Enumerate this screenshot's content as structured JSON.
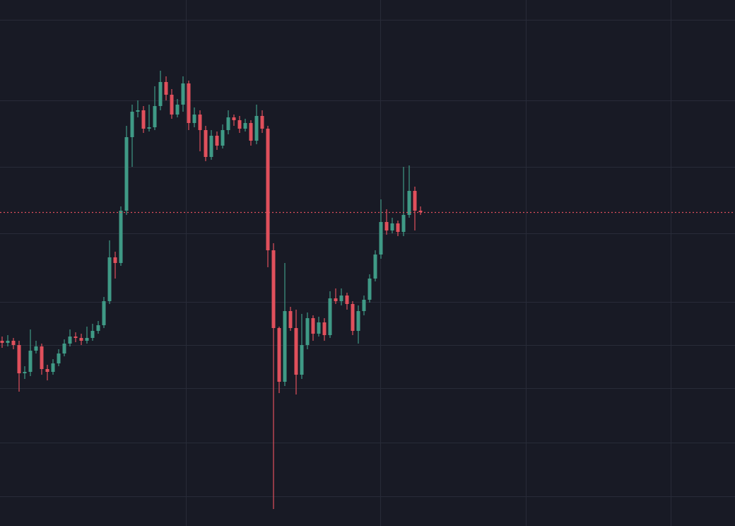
{
  "chart_data": {
    "type": "candlestick",
    "up_color": "#3f9a86",
    "down_color": "#e0505c",
    "price_line": true,
    "ylim": [
      0,
      744
    ],
    "open": [
      262,
      259,
      262,
      256,
      216,
      218,
      248,
      254,
      222,
      218,
      230,
      244,
      258,
      268,
      266,
      262,
      266,
      276,
      284,
      318,
      380,
      372,
      446,
      550,
      586,
      588,
      562,
      564,
      594,
      628,
      610,
      582,
      596,
      626,
      570,
      582,
      560,
      522,
      552,
      538,
      560,
      578,
      574,
      562,
      570,
      545,
      580,
      562,
      390,
      280,
      204,
      304,
      280,
      214,
      256,
      294,
      272,
      288,
      270,
      322,
      318,
      326,
      314,
      276,
      304,
      320,
      350,
      384,
      430,
      418,
      428,
      416,
      440,
      474,
      446
    ],
    "high": [
      268,
      270,
      266,
      262,
      226,
      278,
      262,
      258,
      228,
      236,
      250,
      264,
      278,
      274,
      272,
      282,
      286,
      290,
      324,
      404,
      388,
      452,
      566,
      596,
      602,
      594,
      596,
      622,
      644,
      636,
      618,
      604,
      636,
      630,
      592,
      588,
      566,
      560,
      558,
      568,
      588,
      582,
      580,
      576,
      574,
      596,
      588,
      566,
      400,
      282,
      372,
      310,
      306,
      300,
      302,
      298,
      296,
      294,
      332,
      336,
      336,
      330,
      318,
      312,
      326,
      356,
      390,
      462,
      448,
      436,
      432,
      508,
      510,
      480,
      452
    ],
    "low": [
      252,
      254,
      250,
      190,
      208,
      212,
      244,
      214,
      206,
      214,
      226,
      240,
      254,
      260,
      256,
      258,
      262,
      272,
      280,
      314,
      350,
      368,
      440,
      508,
      578,
      556,
      558,
      560,
      588,
      602,
      576,
      578,
      586,
      560,
      564,
      530,
      516,
      518,
      532,
      534,
      554,
      566,
      556,
      558,
      538,
      540,
      556,
      366,
      24,
      188,
      198,
      276,
      186,
      208,
      250,
      262,
      268,
      262,
      266,
      314,
      312,
      306,
      270,
      258,
      298,
      316,
      346,
      378,
      412,
      414,
      410,
      410,
      436,
      418,
      440
    ],
    "close": [
      259,
      262,
      256,
      216,
      218,
      248,
      254,
      222,
      218,
      230,
      244,
      258,
      268,
      266,
      262,
      266,
      276,
      284,
      318,
      380,
      372,
      446,
      550,
      586,
      588,
      562,
      564,
      594,
      628,
      610,
      582,
      596,
      626,
      570,
      582,
      560,
      522,
      552,
      538,
      560,
      578,
      574,
      562,
      570,
      545,
      580,
      562,
      390,
      280,
      204,
      304,
      280,
      214,
      256,
      294,
      272,
      288,
      270,
      322,
      318,
      326,
      314,
      276,
      304,
      320,
      350,
      384,
      430,
      418,
      428,
      416,
      440,
      474,
      446,
      444
    ]
  }
}
